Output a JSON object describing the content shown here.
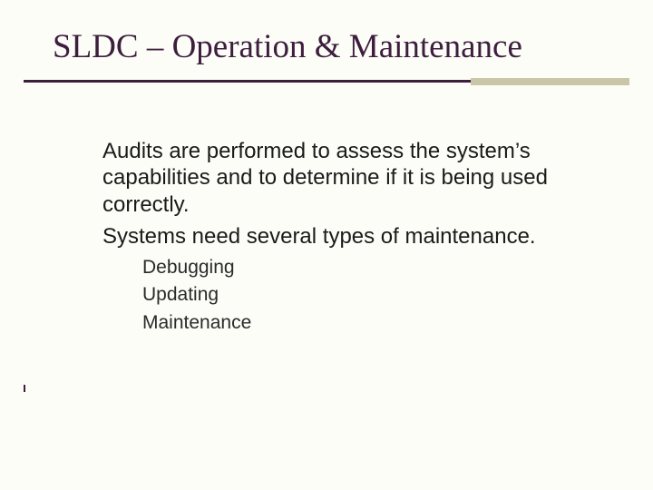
{
  "slide": {
    "title": "SLDC – Operation & Maintenance",
    "title_color": "#3d1e3d",
    "title_fontsize": 37,
    "title_font": "Times New Roman",
    "rule": {
      "dark_color": "#3d1e3d",
      "light_color": "#cac6a8",
      "dark_width": 493,
      "light_width": 175
    },
    "body": {
      "p1": "Audits are performed to assess the system’s capabilities and to determine if it is being used correctly.",
      "p2": "Systems need several types of maintenance.",
      "sub": [
        "Debugging",
        "Updating",
        "Maintenance"
      ],
      "body_fontsize": 24,
      "sub_fontsize": 21,
      "text_color": "#1a1a1a"
    },
    "background_color": "#fdfdf8"
  }
}
